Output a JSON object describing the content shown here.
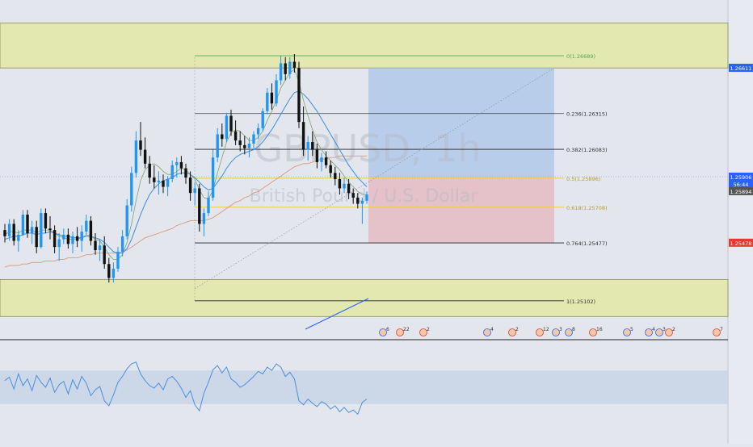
{
  "chart_data": {
    "type": "candlestick",
    "symbol": "GBPUSD, 1h",
    "description": "British Pound / U.S. Dollar",
    "ylim": [
      1.2485,
      1.2705
    ],
    "candles": [
      [
        1.2556,
        1.256,
        1.2548,
        1.2552
      ],
      [
        1.2552,
        1.2563,
        1.2549,
        1.256
      ],
      [
        1.256,
        1.2563,
        1.2546,
        1.2549
      ],
      [
        1.2549,
        1.2556,
        1.2542,
        1.2553
      ],
      [
        1.2553,
        1.2569,
        1.2552,
        1.2566
      ],
      [
        1.2566,
        1.2569,
        1.2551,
        1.2554
      ],
      [
        1.2554,
        1.2562,
        1.2547,
        1.2558
      ],
      [
        1.2558,
        1.2562,
        1.2541,
        1.2545
      ],
      [
        1.2545,
        1.257,
        1.2544,
        1.2567
      ],
      [
        1.2567,
        1.257,
        1.2554,
        1.2557
      ],
      [
        1.2557,
        1.2565,
        1.255,
        1.2556
      ],
      [
        1.2556,
        1.2559,
        1.2541,
        1.2545
      ],
      [
        1.2545,
        1.2554,
        1.2536,
        1.255
      ],
      [
        1.255,
        1.2557,
        1.2547,
        1.2553
      ],
      [
        1.2553,
        1.2557,
        1.2544,
        1.2547
      ],
      [
        1.2547,
        1.2555,
        1.2541,
        1.2552
      ],
      [
        1.2552,
        1.2558,
        1.2545,
        1.2549
      ],
      [
        1.2549,
        1.2559,
        1.2542,
        1.2555
      ],
      [
        1.2555,
        1.2566,
        1.2553,
        1.2562
      ],
      [
        1.2562,
        1.2565,
        1.2546,
        1.2549
      ],
      [
        1.2549,
        1.2554,
        1.254,
        1.2543
      ],
      [
        1.2543,
        1.255,
        1.2536,
        1.2546
      ],
      [
        1.2546,
        1.2552,
        1.2531,
        1.2534
      ],
      [
        1.2534,
        1.2538,
        1.2522,
        1.2525
      ],
      [
        1.2525,
        1.2535,
        1.2522,
        1.2531
      ],
      [
        1.2531,
        1.2545,
        1.2529,
        1.2542
      ],
      [
        1.2542,
        1.2556,
        1.2539,
        1.2552
      ],
      [
        1.2552,
        1.2576,
        1.255,
        1.2572
      ],
      [
        1.2572,
        1.2597,
        1.2568,
        1.2593
      ],
      [
        1.2593,
        1.262,
        1.259,
        1.2614
      ],
      [
        1.2614,
        1.2626,
        1.2604,
        1.2608
      ],
      [
        1.2608,
        1.2616,
        1.2596,
        1.2599
      ],
      [
        1.2599,
        1.2604,
        1.2586,
        1.259
      ],
      [
        1.259,
        1.2598,
        1.2583,
        1.2587
      ],
      [
        1.2587,
        1.2594,
        1.2579,
        1.2588
      ],
      [
        1.2588,
        1.2592,
        1.258,
        1.2584
      ],
      [
        1.2584,
        1.2591,
        1.2578,
        1.2589
      ],
      [
        1.2589,
        1.2601,
        1.2587,
        1.2598
      ],
      [
        1.2598,
        1.2603,
        1.259,
        1.26
      ],
      [
        1.26,
        1.2604,
        1.2592,
        1.2596
      ],
      [
        1.2596,
        1.2599,
        1.2586,
        1.259
      ],
      [
        1.259,
        1.2594,
        1.2575,
        1.258
      ],
      [
        1.258,
        1.2587,
        1.2572,
        1.2583
      ],
      [
        1.2583,
        1.2586,
        1.2555,
        1.256
      ],
      [
        1.256,
        1.257,
        1.2552,
        1.2567
      ],
      [
        1.2567,
        1.2581,
        1.2565,
        1.2577
      ],
      [
        1.2577,
        1.2608,
        1.2575,
        1.2603
      ],
      [
        1.2603,
        1.2622,
        1.26,
        1.2618
      ],
      [
        1.2618,
        1.2625,
        1.261,
        1.2615
      ],
      [
        1.2615,
        1.2632,
        1.2613,
        1.263
      ],
      [
        1.263,
        1.2634,
        1.2617,
        1.262
      ],
      [
        1.262,
        1.2627,
        1.2611,
        1.2614
      ],
      [
        1.2614,
        1.262,
        1.2607,
        1.2611
      ],
      [
        1.2611,
        1.2617,
        1.2605,
        1.2609
      ],
      [
        1.2609,
        1.2616,
        1.2603,
        1.2612
      ],
      [
        1.2612,
        1.262,
        1.2608,
        1.2618
      ],
      [
        1.2618,
        1.2625,
        1.2615,
        1.2622
      ],
      [
        1.2622,
        1.2635,
        1.262,
        1.2633
      ],
      [
        1.2633,
        1.2648,
        1.2631,
        1.2645
      ],
      [
        1.2645,
        1.2651,
        1.2634,
        1.2638
      ],
      [
        1.2638,
        1.2657,
        1.2636,
        1.2653
      ],
      [
        1.2653,
        1.2669,
        1.265,
        1.2664
      ],
      [
        1.2664,
        1.2668,
        1.2653,
        1.2657
      ],
      [
        1.2657,
        1.2668,
        1.2654,
        1.2665
      ],
      [
        1.2665,
        1.267,
        1.2658,
        1.2661
      ],
      [
        1.2661,
        1.2665,
        1.2622,
        1.2626
      ],
      [
        1.2626,
        1.2636,
        1.2604,
        1.2608
      ],
      [
        1.2608,
        1.2617,
        1.2601,
        1.2613
      ],
      [
        1.2613,
        1.262,
        1.2604,
        1.2608
      ],
      [
        1.2608,
        1.2612,
        1.2596,
        1.26
      ],
      [
        1.26,
        1.2606,
        1.2594,
        1.2603
      ],
      [
        1.2603,
        1.2607,
        1.2596,
        1.2598
      ],
      [
        1.2598,
        1.2601,
        1.259,
        1.2593
      ],
      [
        1.2593,
        1.2597,
        1.2585,
        1.2589
      ],
      [
        1.2589,
        1.2593,
        1.2579,
        1.2583
      ],
      [
        1.2583,
        1.259,
        1.258,
        1.2586
      ],
      [
        1.2586,
        1.2589,
        1.2576,
        1.258
      ],
      [
        1.258,
        1.2583,
        1.2573,
        1.2577
      ],
      [
        1.2577,
        1.258,
        1.257,
        1.2573
      ],
      [
        1.2573,
        1.2577,
        1.256,
        1.2575
      ],
      [
        1.2575,
        1.2581,
        1.2573,
        1.2579
      ]
    ],
    "ma_fast": [
      1.2553,
      1.2555,
      1.2555,
      1.2554,
      1.2556,
      1.2556,
      1.2556,
      1.2554,
      1.2556,
      1.2556,
      1.2556,
      1.2554,
      1.2552,
      1.2551,
      1.255,
      1.255,
      1.255,
      1.2551,
      1.2553,
      1.2552,
      1.255,
      1.2549,
      1.2545,
      1.254,
      1.2537,
      1.2537,
      1.254,
      1.2548,
      1.256,
      1.2575,
      1.2588,
      1.2595,
      1.2598,
      1.2599,
      1.2597,
      1.2594,
      1.2592,
      1.2592,
      1.2594,
      1.2596,
      1.2595,
      1.2592,
      1.2589,
      1.2582,
      1.2577,
      1.2576,
      1.2582,
      1.2593,
      1.2603,
      1.2613,
      1.2619,
      1.2621,
      1.262,
      1.2617,
      1.2614,
      1.2614,
      1.2616,
      1.262,
      1.2627,
      1.2633,
      1.264,
      1.2648,
      1.2653,
      1.2658,
      1.266,
      1.2652,
      1.264,
      1.263,
      1.2621,
      1.2613,
      1.2608,
      1.2604,
      1.2601,
      1.2598,
      1.2595,
      1.2591,
      1.2587,
      1.2584,
      1.2581,
      1.2579,
      1.2579
    ],
    "ma_mid": [
      1.255,
      1.2551,
      1.2552,
      1.2552,
      1.2553,
      1.2554,
      1.2554,
      1.2553,
      1.2554,
      1.2554,
      1.2555,
      1.2554,
      1.2553,
      1.2552,
      1.2552,
      1.2551,
      1.2551,
      1.2551,
      1.2552,
      1.2552,
      1.2551,
      1.255,
      1.2548,
      1.2545,
      1.2542,
      1.2541,
      1.2541,
      1.2544,
      1.255,
      1.2558,
      1.2566,
      1.2573,
      1.2579,
      1.2583,
      1.2586,
      1.2588,
      1.2589,
      1.259,
      1.2592,
      1.2593,
      1.2593,
      1.2592,
      1.259,
      1.2587,
      1.2584,
      1.2582,
      1.2583,
      1.2587,
      1.2591,
      1.2596,
      1.26,
      1.2603,
      1.2605,
      1.2606,
      1.2607,
      1.2608,
      1.261,
      1.2613,
      1.2617,
      1.2621,
      1.2626,
      1.2631,
      1.2636,
      1.2641,
      1.2645,
      1.2646,
      1.2644,
      1.2641,
      1.2637,
      1.2633,
      1.2628,
      1.2623,
      1.2618,
      1.2613,
      1.2608,
      1.2603,
      1.2598,
      1.2594,
      1.259,
      1.2587,
      1.2584
    ],
    "ma_slow": [
      1.2532,
      1.2533,
      1.2533,
      1.2533,
      1.2534,
      1.2534,
      1.2535,
      1.2535,
      1.2535,
      1.2536,
      1.2536,
      1.2536,
      1.2537,
      1.2537,
      1.2538,
      1.2538,
      1.2538,
      1.2539,
      1.254,
      1.254,
      1.2541,
      1.2541,
      1.2541,
      1.2541,
      1.2541,
      1.2541,
      1.2542,
      1.2543,
      1.2545,
      1.2547,
      1.2549,
      1.2551,
      1.2552,
      1.2553,
      1.2554,
      1.2555,
      1.2556,
      1.2557,
      1.2559,
      1.256,
      1.2561,
      1.2562,
      1.2562,
      1.2562,
      1.2562,
      1.2563,
      1.2564,
      1.2566,
      1.2568,
      1.257,
      1.2572,
      1.2574,
      1.2575,
      1.2577,
      1.2578,
      1.258,
      1.2581,
      1.2583,
      1.2585,
      1.2587,
      1.2589,
      1.2591,
      1.2593,
      1.2595,
      1.2597,
      1.2598,
      1.2599,
      1.2599,
      1.26,
      1.2601,
      1.2602,
      1.2602,
      1.2603,
      1.2603,
      1.2604,
      1.2604,
      1.2604,
      1.2604,
      1.2604,
      1.2604,
      1.2604
    ],
    "fib_levels": [
      {
        "ratio": 0,
        "price": 1.26689,
        "label": "0(1.26689)"
      },
      {
        "ratio": 0.236,
        "price": 1.26315,
        "label": "0.236(1.26315)"
      },
      {
        "ratio": 0.382,
        "price": 1.26083,
        "label": "0.382(1.26083)"
      },
      {
        "ratio": 0.5,
        "price": 1.25896,
        "label": "0.5(1.25896)"
      },
      {
        "ratio": 0.618,
        "price": 1.25708,
        "label": "0.618(1.25708)"
      },
      {
        "ratio": 0.764,
        "price": 1.25477,
        "label": "0.764(1.25477)"
      },
      {
        "ratio": 1,
        "price": 1.25102,
        "label": "1(1.25102)"
      }
    ],
    "zones": [
      {
        "from": 1.2661,
        "to": 1.269
      },
      {
        "from": 1.25,
        "to": 1.2524
      }
    ],
    "position": {
      "entry": 1.25906,
      "target": 1.2661,
      "stop": 1.25478
    },
    "price_labels": [
      {
        "price": 1.26611,
        "text": "1.26611",
        "color": "#2962ff"
      },
      {
        "price": 1.25906,
        "text": "1.25906",
        "color": "#2962ff"
      },
      {
        "price": 1.2583,
        "text": "56:44",
        "color": "#2962ff"
      },
      {
        "price": 1.25894,
        "text": "1.25894",
        "color": "#555555"
      },
      {
        "price": 1.25478,
        "text": "1.25478",
        "color": "#e53935"
      }
    ],
    "rsi": {
      "ylim": [
        0,
        100
      ],
      "band": [
        30,
        70
      ],
      "values": [
        58,
        62,
        48,
        66,
        52,
        60,
        46,
        64,
        56,
        50,
        61,
        44,
        53,
        57,
        42,
        59,
        48,
        63,
        55,
        40,
        47,
        51,
        34,
        28,
        41,
        56,
        63,
        72,
        78,
        80,
        66,
        58,
        52,
        49,
        55,
        47,
        60,
        63,
        57,
        49,
        38,
        46,
        29,
        22,
        43,
        56,
        71,
        76,
        67,
        74,
        60,
        56,
        50,
        53,
        58,
        63,
        69,
        66,
        74,
        70,
        78,
        74,
        63,
        68,
        60,
        34,
        29,
        36,
        31,
        27,
        33,
        30,
        24,
        28,
        21,
        26,
        20,
        23,
        18,
        32,
        36
      ]
    },
    "event_markers": [
      {
        "label": "6",
        "color": "#2962ff"
      },
      {
        "label": "22",
        "color": "#e53935"
      },
      {
        "label": "2",
        "color": "#e53935"
      },
      {
        "label": "4",
        "color": "#2962ff"
      },
      {
        "label": "2",
        "color": "#e53935"
      },
      {
        "label": "12",
        "color": "#e53935"
      },
      {
        "label": "3",
        "color": "#2962ff"
      },
      {
        "label": "8",
        "color": "#2962ff"
      },
      {
        "label": "16",
        "color": "#e53935"
      },
      {
        "label": "5",
        "color": "#2962ff"
      },
      {
        "label": "4",
        "color": "#2962ff"
      },
      {
        "label": "3",
        "color": "#2962ff"
      },
      {
        "label": "2",
        "color": "#e53935"
      },
      {
        "label": "7",
        "color": "#e53935"
      }
    ],
    "colors": {
      "up": "#2196f3",
      "down": "#111111",
      "zone": "#e2e8a6",
      "zone_border": "#8a8a5a",
      "target_box": "#a8c4ea",
      "stop_box": "#e5b4bd",
      "ma_fast": "#7fa36a",
      "ma_mid": "#3d8de0",
      "ma_slow": "#d69a82",
      "rsi": "#4a90e2",
      "rsi_band": "#c9d5e8",
      "fib_line": "#222222",
      "fib_zero": "#4caf50",
      "fib_mid": "#f2d03b"
    }
  }
}
